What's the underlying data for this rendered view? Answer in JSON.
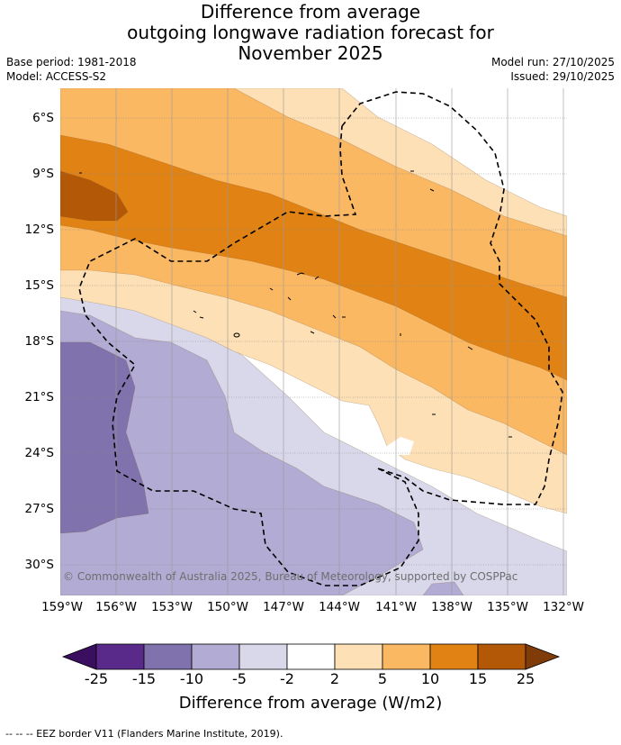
{
  "title": {
    "line1": "Difference from average",
    "line2": "outgoing longwave radiation forecast for",
    "line3": "November 2025"
  },
  "meta": {
    "base_period": "Base period: 1981-2018",
    "model": "Model: ACCESS-S2",
    "model_run": "Model run: 27/10/2025",
    "issued": "Issued: 29/10/2025"
  },
  "map": {
    "lat_ticks": [
      "6°S",
      "9°S",
      "12°S",
      "15°S",
      "18°S",
      "21°S",
      "24°S",
      "27°S",
      "30°S"
    ],
    "lon_ticks": [
      "159°W",
      "156°W",
      "153°W",
      "150°W",
      "147°W",
      "144°W",
      "141°W",
      "138°W",
      "135°W",
      "132°W"
    ],
    "copyright": "© Commonwealth of Australia 2025, Bureau of Meteorology, supported by COSPPac",
    "colors": {
      "n25": "#3b0f5f",
      "n15": "#5a2a8a",
      "n10": "#7f72ad",
      "n5": "#b2abd3",
      "n2": "#d8d8ea",
      "zero": "#ffffff",
      "p2": "#fde0b5",
      "p5": "#fbb863",
      "p10": "#e08214",
      "p15": "#b35806",
      "p25": "#7f3b08"
    }
  },
  "colorbar": {
    "ticks": [
      "-25",
      "-15",
      "-10",
      "-5",
      "-2",
      "2",
      "5",
      "10",
      "15",
      "25"
    ],
    "label": "Difference from average (W/m2)"
  },
  "footer": "--  --  -- EEZ border V11 (Flanders Marine Institute, 2019)."
}
